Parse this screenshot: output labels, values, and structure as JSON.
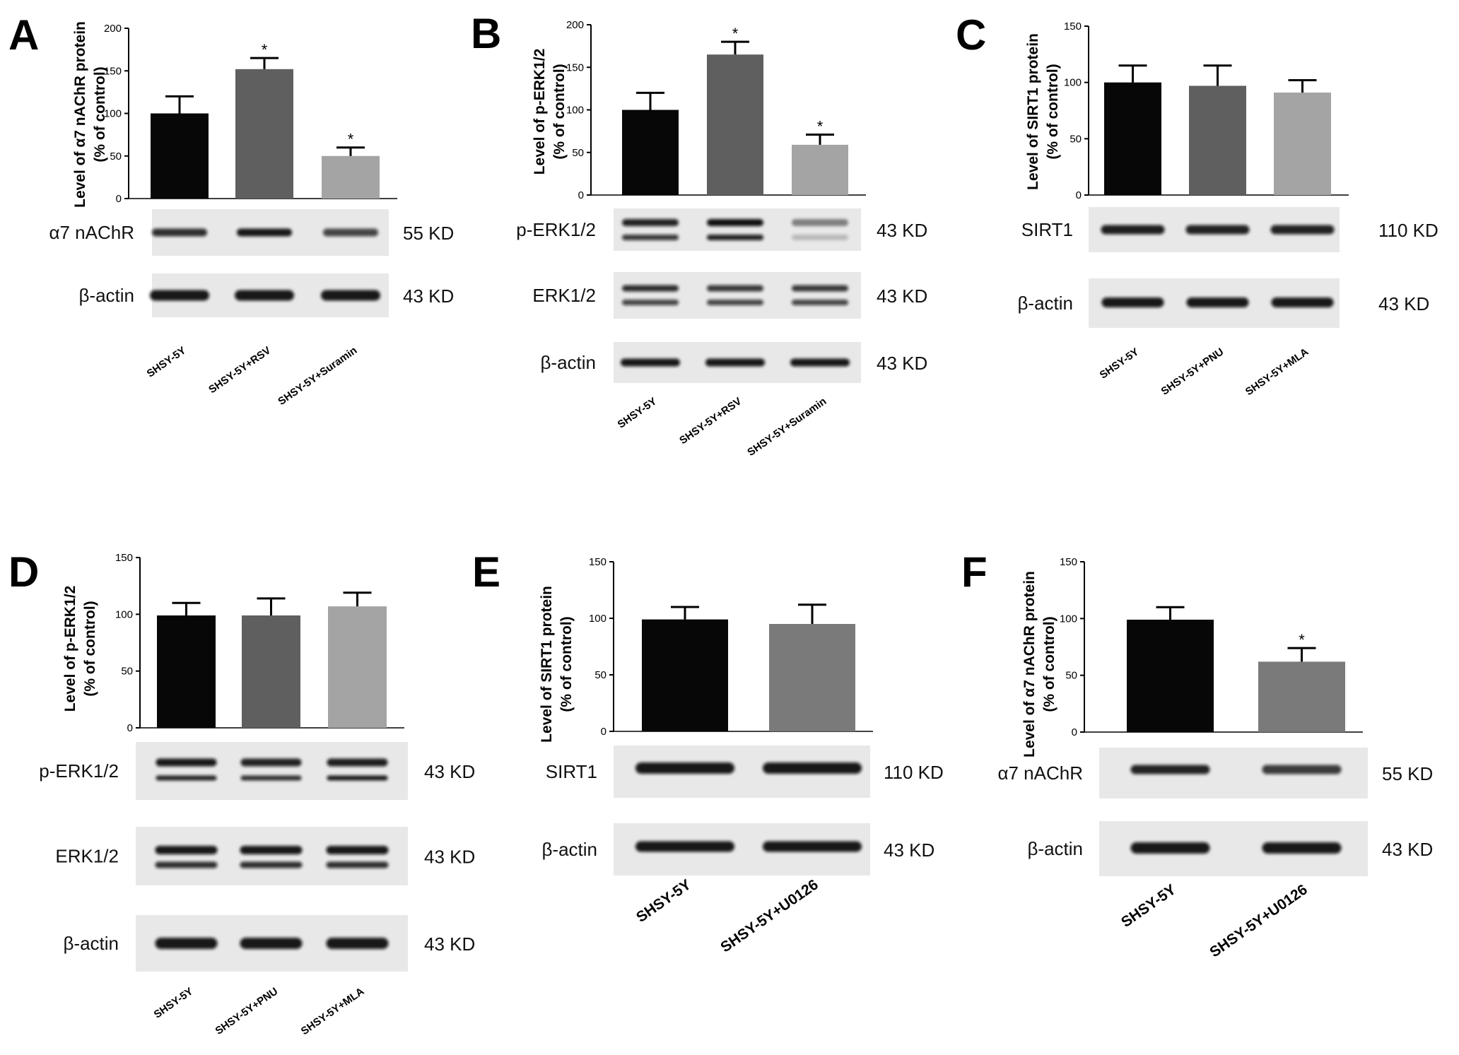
{
  "chart_data": [
    {
      "type": "bar",
      "panel_letter": "A",
      "ylabel_line1": "Level of α7 nAChR protein",
      "ylabel_line2": "(% of control)",
      "ylim": [
        0,
        200
      ],
      "yticks": [
        0,
        50,
        100,
        150,
        200
      ],
      "categories": [
        "SHSY-5Y",
        "SHSY-5Y+RSV",
        "SHSY-5Y+Suramin"
      ],
      "values": [
        100,
        152,
        50
      ],
      "errors": [
        20,
        13,
        10
      ],
      "significance": [
        "",
        "*",
        "*"
      ],
      "bar_colors": [
        "#070707",
        "#5f5f5f",
        "#a4a4a4"
      ],
      "blots": [
        {
          "label": "α7 nAChR",
          "size": "55 KD"
        },
        {
          "label": "β-actin",
          "size": "43 KD"
        }
      ]
    },
    {
      "type": "bar",
      "panel_letter": "B",
      "ylabel_line1": "Level of p-ERK1/2",
      "ylabel_line2": "(% of control)",
      "ylim": [
        0,
        200
      ],
      "yticks": [
        0,
        50,
        100,
        150,
        200
      ],
      "categories": [
        "SHSY-5Y",
        "SHSY-5Y+RSV",
        "SHSY-5Y+Suramin"
      ],
      "values": [
        100,
        165,
        59
      ],
      "errors": [
        20,
        15,
        12
      ],
      "significance": [
        "",
        "*",
        "*"
      ],
      "bar_colors": [
        "#070707",
        "#5f5f5f",
        "#a4a4a4"
      ],
      "blots": [
        {
          "label": "p-ERK1/2",
          "size": "43 KD"
        },
        {
          "label": "ERK1/2",
          "size": "43 KD"
        },
        {
          "label": "β-actin",
          "size": "43 KD"
        }
      ]
    },
    {
      "type": "bar",
      "panel_letter": "C",
      "ylabel_line1": "Level of SIRT1 protein",
      "ylabel_line2": "(% of control)",
      "ylim": [
        0,
        150
      ],
      "yticks": [
        0,
        50,
        100,
        150
      ],
      "categories": [
        "SHSY-5Y",
        "SHSY-5Y+PNU",
        "SHSY-5Y+MLA"
      ],
      "values": [
        100,
        97,
        91
      ],
      "errors": [
        15,
        18,
        11
      ],
      "significance": [
        "",
        "",
        ""
      ],
      "bar_colors": [
        "#070707",
        "#5f5f5f",
        "#a4a4a4"
      ],
      "blots": [
        {
          "label": "SIRT1",
          "size": "110 KD"
        },
        {
          "label": "β-actin",
          "size": "43 KD"
        }
      ]
    },
    {
      "type": "bar",
      "panel_letter": "D",
      "ylabel_line1": "Level of p-ERK1/2",
      "ylabel_line2": "(% of control)",
      "ylim": [
        0,
        150
      ],
      "yticks": [
        0,
        50,
        100,
        150
      ],
      "categories": [
        "SHSY-5Y",
        "SHSY-5Y+PNU",
        "SHSY-5Y+MLA"
      ],
      "values": [
        99,
        99,
        107
      ],
      "errors": [
        11,
        15,
        12
      ],
      "significance": [
        "",
        "",
        ""
      ],
      "bar_colors": [
        "#070707",
        "#5f5f5f",
        "#a4a4a4"
      ],
      "blots": [
        {
          "label": "p-ERK1/2",
          "size": "43 KD"
        },
        {
          "label": "ERK1/2",
          "size": "43 KD"
        },
        {
          "label": "β-actin",
          "size": "43 KD"
        }
      ]
    },
    {
      "type": "bar",
      "panel_letter": "E",
      "ylabel_line1": "Level of SIRT1 protein",
      "ylabel_line2": "(% of control)",
      "ylim": [
        0,
        150
      ],
      "yticks": [
        0,
        50,
        100,
        150
      ],
      "categories": [
        "SHSY-5Y",
        "SHSY-5Y+U0126"
      ],
      "values": [
        99,
        95
      ],
      "errors": [
        11,
        17
      ],
      "significance": [
        "",
        ""
      ],
      "bar_colors": [
        "#070707",
        "#7a7a7a"
      ],
      "blots": [
        {
          "label": "SIRT1",
          "size": "110 KD"
        },
        {
          "label": "β-actin",
          "size": "43 KD"
        }
      ]
    },
    {
      "type": "bar",
      "panel_letter": "F",
      "ylabel_line1": "Level of α7 nAChR protein",
      "ylabel_line2": "(% of control)",
      "ylim": [
        0,
        150
      ],
      "yticks": [
        0,
        50,
        100,
        150
      ],
      "categories": [
        "SHSY-5Y",
        "SHSY-5Y+U0126"
      ],
      "values": [
        99,
        62
      ],
      "errors": [
        11,
        12
      ],
      "significance": [
        "",
        "*"
      ],
      "bar_colors": [
        "#070707",
        "#7a7a7a"
      ],
      "blots": [
        {
          "label": "α7 nAChR",
          "size": "55 KD"
        },
        {
          "label": "β-actin",
          "size": "43 KD"
        }
      ]
    }
  ]
}
